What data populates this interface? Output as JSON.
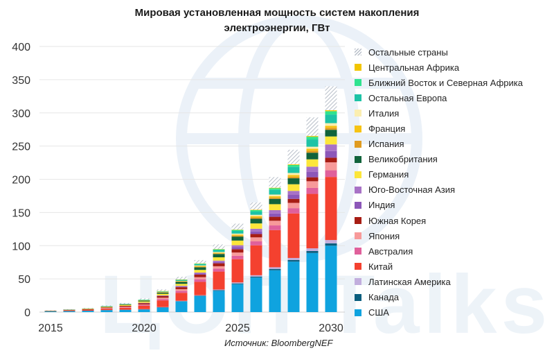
{
  "title_line1": "Мировая установленная мощность систем накопления",
  "title_line2": "электроэнергии, ГВт",
  "source": "Источник: BloombergNEF",
  "watermark_text": "ЦОП Talks",
  "chart_data": {
    "type": "bar",
    "stacked": true,
    "title": "Мировая установленная мощность систем накопления электроэнергии, ГВт",
    "xlabel": "",
    "ylabel": "",
    "ylim": [
      0,
      400
    ],
    "yticks": [
      0,
      50,
      100,
      150,
      200,
      250,
      300,
      350,
      400
    ],
    "x_tick_labels": [
      "2015",
      "2020",
      "2025",
      "2030"
    ],
    "categories": [
      "2015",
      "2016",
      "2017",
      "2018",
      "2019",
      "2020",
      "2021",
      "2022",
      "2023",
      "2024",
      "2025",
      "2026",
      "2027",
      "2028",
      "2029",
      "2030"
    ],
    "grid": true,
    "legend_position": "right",
    "series": [
      {
        "name": "США",
        "color": "#0fa3df",
        "values": [
          1,
          1.5,
          2,
          3,
          3.5,
          4,
          7,
          16,
          24,
          32,
          42,
          52,
          63,
          76,
          89,
          100
        ]
      },
      {
        "name": "Канада",
        "color": "#0b5e7e",
        "values": [
          0,
          0,
          0,
          0,
          0,
          0.2,
          0.3,
          0.5,
          0.7,
          1,
          1.2,
          1.5,
          2,
          2.5,
          3,
          3.5
        ]
      },
      {
        "name": "Латинская Америка",
        "color": "#c2aedd",
        "values": [
          0,
          0,
          0,
          0,
          0,
          0.2,
          0.3,
          0.5,
          0.8,
          1,
          1.5,
          2,
          2.5,
          3,
          4,
          5
        ]
      },
      {
        "name": "Китай",
        "color": "#f4412f",
        "values": [
          0.5,
          1,
          1.5,
          2,
          3,
          5,
          10,
          12,
          20,
          27,
          35,
          45,
          56,
          67,
          82,
          95
        ]
      },
      {
        "name": "Австралия",
        "color": "#e0609b",
        "values": [
          0,
          0,
          0,
          0.5,
          0.7,
          1,
          2,
          3,
          4,
          4.5,
          5,
          6,
          7,
          8,
          9,
          10
        ]
      },
      {
        "name": "Япония",
        "color": "#f79a9a",
        "values": [
          0,
          0,
          0,
          0.5,
          0.8,
          1,
          2,
          2.5,
          3,
          3.5,
          5,
          6,
          7,
          8,
          10,
          12
        ]
      },
      {
        "name": "Южная Корея",
        "color": "#a71d14",
        "values": [
          0.3,
          0.5,
          0.8,
          1,
          1.5,
          2,
          2.5,
          3,
          4,
          4.5,
          5,
          5,
          6,
          6,
          6,
          7
        ]
      },
      {
        "name": "Индия",
        "color": "#8c57b9",
        "values": [
          0,
          0,
          0,
          0,
          0,
          0.3,
          0.5,
          1,
          1.5,
          2,
          3,
          4,
          5,
          6,
          8,
          10
        ]
      },
      {
        "name": "Юго-Восточная Азия",
        "color": "#a872c6",
        "values": [
          0,
          0,
          0,
          0,
          0,
          0.3,
          0.5,
          1,
          1.5,
          2,
          3,
          4,
          5,
          6,
          8,
          10
        ]
      },
      {
        "name": "Германия",
        "color": "#fce63a",
        "values": [
          0.2,
          0.5,
          0.7,
          1,
          1.5,
          2,
          2.5,
          3,
          4,
          5,
          7,
          8,
          9,
          10,
          11,
          12
        ]
      },
      {
        "name": "Великобритания",
        "color": "#11633b",
        "values": [
          0.2,
          0.3,
          0.5,
          0.8,
          1,
          1.5,
          2,
          3,
          4,
          5,
          6,
          7,
          8,
          9,
          10,
          10
        ]
      },
      {
        "name": "Испания",
        "color": "#e09b20",
        "values": [
          0,
          0,
          0,
          0,
          0,
          0.2,
          0.3,
          0.5,
          1,
          1,
          1.5,
          2,
          2,
          2.5,
          3,
          3
        ]
      },
      {
        "name": "Франция",
        "color": "#f6c313",
        "values": [
          0,
          0,
          0,
          0,
          0,
          0.2,
          0.3,
          0.5,
          1,
          1,
          1.5,
          2,
          2,
          2.5,
          3,
          3
        ]
      },
      {
        "name": "Италия",
        "color": "#fbeeb0",
        "values": [
          0,
          0,
          0,
          0,
          0,
          0.2,
          0.3,
          0.5,
          0.8,
          1,
          1.5,
          2,
          2.5,
          3,
          3,
          4
        ]
      },
      {
        "name": "Остальная Европа",
        "color": "#1dc3a6",
        "values": [
          0,
          0,
          0,
          0.2,
          0.3,
          0.5,
          0.8,
          1.5,
          2,
          3,
          4,
          5,
          7,
          9,
          11,
          13
        ]
      },
      {
        "name": "Ближний Восток и Северная Африка",
        "color": "#2fe38f",
        "values": [
          0,
          0,
          0,
          0,
          0,
          0.2,
          0.3,
          0.5,
          0.8,
          1,
          1.5,
          2,
          2.5,
          3,
          4,
          5
        ]
      },
      {
        "name": "Центральная Африка",
        "color": "#f2c500",
        "values": [
          0,
          0,
          0,
          0,
          0,
          0,
          0.1,
          0.2,
          0.3,
          0.4,
          0.5,
          0.6,
          0.8,
          1,
          1.2,
          1.5
        ]
      },
      {
        "name": "Остальные страны",
        "color": "#b7bec8",
        "pattern": "hatch",
        "values": [
          0.3,
          0.5,
          0.8,
          1,
          1.5,
          2,
          2.5,
          4,
          5,
          7,
          9,
          11,
          16,
          22,
          28,
          36
        ]
      }
    ]
  }
}
